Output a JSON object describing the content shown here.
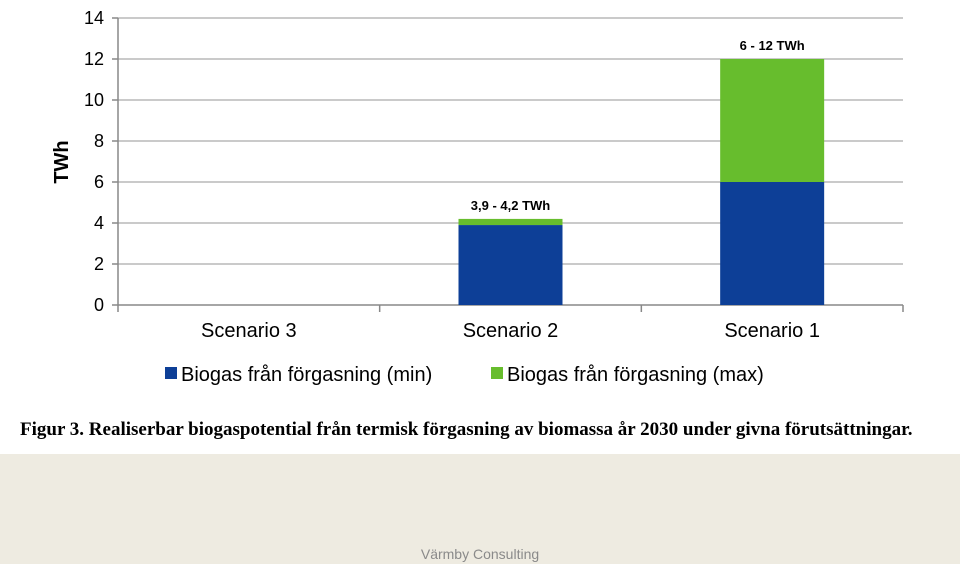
{
  "chart_data": {
    "type": "bar",
    "stacked": true,
    "ylabel": "TWh",
    "ylim": [
      0,
      14
    ],
    "yticks": [
      0,
      2,
      4,
      6,
      8,
      10,
      12,
      14
    ],
    "grid": true,
    "legend_position": "bottom",
    "categories": [
      "Scenario 3",
      "Scenario 2",
      "Scenario 1"
    ],
    "series": [
      {
        "name": "Biogas från förgasning (min)",
        "color": "#0d3f97",
        "values": [
          0,
          3.9,
          6
        ]
      },
      {
        "name": "Biogas från förgasning (max)",
        "color": "#67bd2d",
        "values": [
          0,
          0.3,
          6
        ]
      }
    ],
    "data_labels": [
      "",
      "3,9 - 4,2 TWh",
      "6 - 12 TWh"
    ]
  },
  "caption": "Figur 3. Realiserbar biogaspotential från termisk förgasning av biomassa år 2030 under givna förutsättningar.",
  "footer": {
    "text": "Värmby Consulting"
  }
}
